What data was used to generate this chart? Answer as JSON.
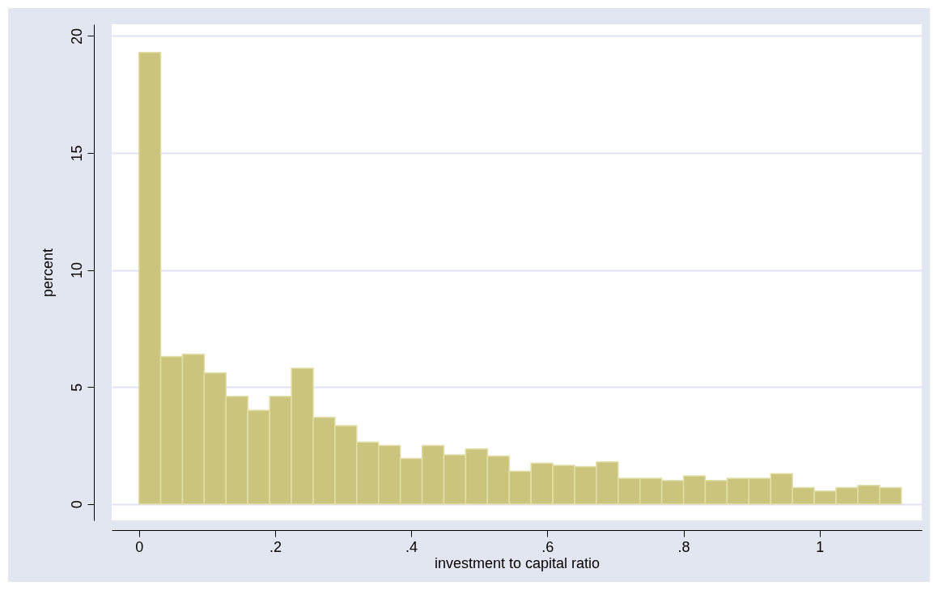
{
  "chart_data": {
    "type": "histogram",
    "xlabel": "investment to capital ratio",
    "ylabel": "percent",
    "bins": [
      0,
      0.032,
      0.064,
      0.096,
      0.128,
      0.16,
      0.192,
      0.224,
      0.256,
      0.288,
      0.32,
      0.352,
      0.384,
      0.416,
      0.448,
      0.48,
      0.512,
      0.544,
      0.576,
      0.608,
      0.64,
      0.672,
      0.704,
      0.736,
      0.768,
      0.8,
      0.832,
      0.864,
      0.896,
      0.928,
      0.96,
      0.992,
      1.024,
      1.056,
      1.088,
      1.12
    ],
    "values": [
      19.3,
      6.3,
      6.4,
      5.6,
      4.6,
      4.0,
      4.6,
      5.8,
      3.7,
      3.35,
      2.65,
      2.5,
      1.95,
      2.5,
      2.1,
      2.35,
      2.05,
      1.4,
      1.75,
      1.65,
      1.6,
      1.8,
      1.1,
      1.1,
      1.0,
      1.2,
      1.0,
      1.1,
      1.1,
      1.3,
      0.7,
      0.55,
      0.7,
      0.8,
      0.7
    ],
    "color": "#cbc47d",
    "xlim": [
      -0.04,
      1.15
    ],
    "xticks": [
      0,
      {
        "value": 0.2,
        "label": ".2"
      },
      {
        "value": 0.4,
        "label": ".4"
      },
      {
        "value": 0.6,
        "label": ".6"
      },
      {
        "value": 0.8,
        "label": ".8"
      },
      1
    ],
    "ylim": [
      -0.7,
      20.5
    ],
    "yticks": [
      0,
      5,
      10,
      15,
      20
    ],
    "grid": "y"
  }
}
